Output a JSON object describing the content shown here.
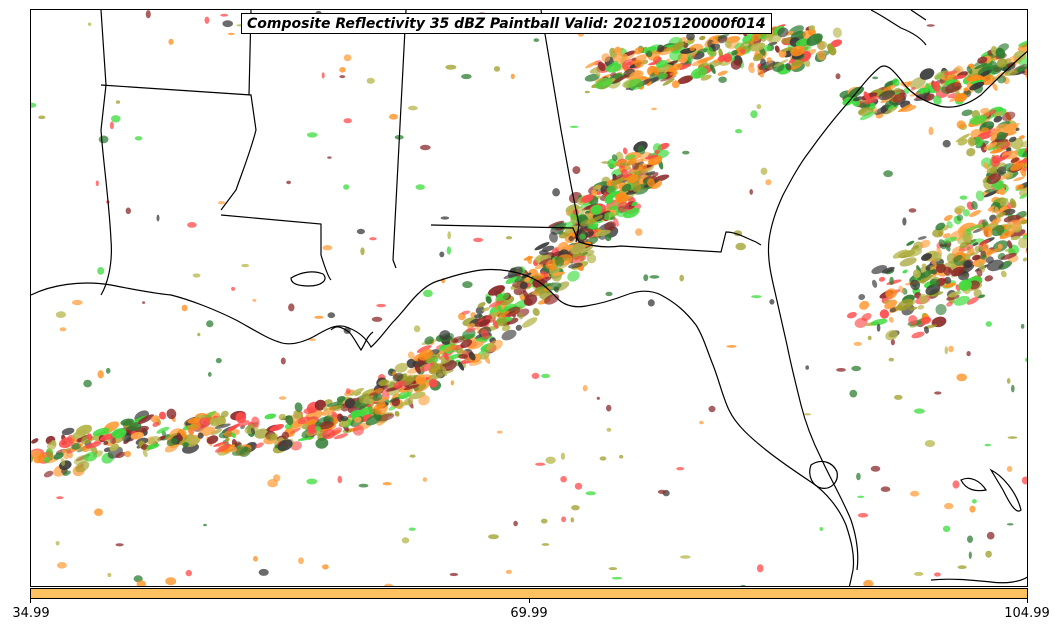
{
  "title": "Composite Reflectivity 35 dBZ Paintball Valid: 202105120000f014",
  "colorbar": {
    "color": "#ffc060",
    "ticks": [
      "34.99",
      "69.99",
      "104.99"
    ]
  },
  "map": {
    "land_color": "#ffffff",
    "water_color": "#ffffff",
    "border_color": "#000000",
    "paint_colors": [
      "#ff4a4a",
      "#ff8c1a",
      "#3cdc3c",
      "#2e7d32",
      "#9e9e2a",
      "#8b2a2a",
      "#3a3a3a",
      "#ffa040",
      "#b5b54a"
    ]
  }
}
